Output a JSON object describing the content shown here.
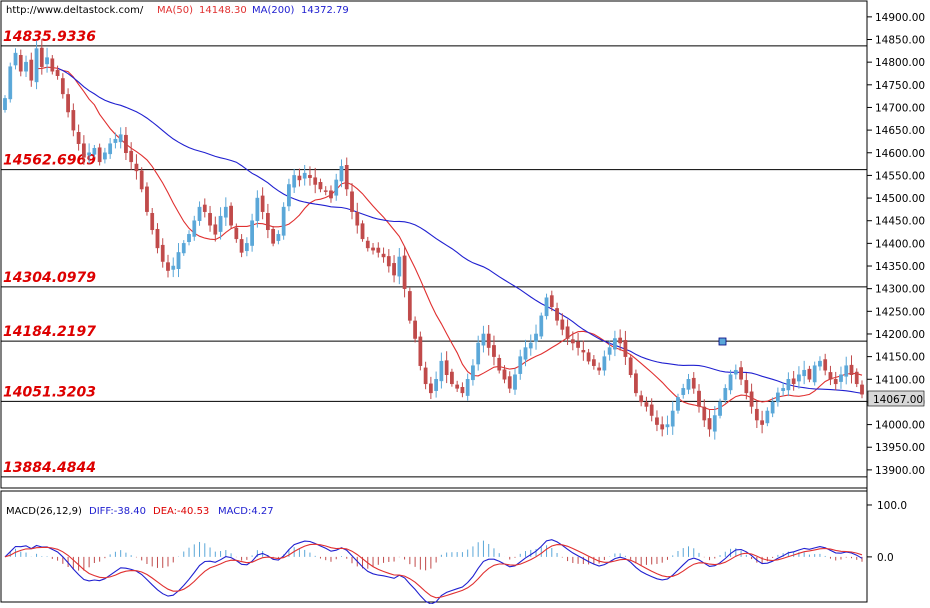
{
  "header": {
    "source": "http://www.deltastock.com/",
    "ma50_label": "MA(50)",
    "ma50_value": "14148.30",
    "ma200_label": "MA(200)",
    "ma200_value": "14372.79"
  },
  "macd_header": {
    "title": "MACD(26,12,9)",
    "diff": "DIFF:-38.40",
    "dea": "DEA:-40.53",
    "macd": "MACD:4.27"
  },
  "current_price": "14067.00",
  "colors": {
    "up": "#5aa7d8",
    "down": "#c04a4a",
    "ma50": "#e03030",
    "ma200": "#2020d0",
    "level_label": "#dd0000",
    "price_box": "#d8d8d8"
  },
  "chart_data": [
    {
      "type": "candlestick",
      "title": "",
      "ylim": [
        13860,
        14935
      ],
      "y_ticks": [
        "13900.00",
        "13950.00",
        "14000.00",
        "14050.00",
        "14100.00",
        "14150.00",
        "14200.00",
        "14250.00",
        "14300.00",
        "14350.00",
        "14400.00",
        "14450.00",
        "14500.00",
        "14550.00",
        "14600.00",
        "14650.00",
        "14700.00",
        "14750.00",
        "14800.00",
        "14850.00",
        "14900.00"
      ],
      "levels": [
        "14835.9336",
        "14562.6969",
        "14304.0979",
        "14184.2197",
        "14051.3203",
        "13884.4844"
      ],
      "closes": [
        14720,
        14790,
        14820,
        14780,
        14800,
        14760,
        14830,
        14790,
        14810,
        14780,
        14770,
        14730,
        14690,
        14650,
        14620,
        14590,
        14600,
        14610,
        14580,
        14600,
        14620,
        14630,
        14640,
        14600,
        14580,
        14560,
        14520,
        14470,
        14430,
        14390,
        14360,
        14340,
        14350,
        14380,
        14400,
        14420,
        14450,
        14480,
        14470,
        14440,
        14420,
        14460,
        14480,
        14440,
        14410,
        14380,
        14400,
        14450,
        14500,
        14470,
        14430,
        14400,
        14420,
        14480,
        14530,
        14550,
        14540,
        14555,
        14545,
        14530,
        14520,
        14515,
        14500,
        14540,
        14570,
        14520,
        14470,
        14440,
        14410,
        14390,
        14385,
        14380,
        14370,
        14350,
        14330,
        14370,
        14300,
        14230,
        14190,
        14130,
        14090,
        14070,
        14100,
        14140,
        14110,
        14090,
        14080,
        14070,
        14100,
        14130,
        14180,
        14200,
        14170,
        14150,
        14120,
        14100,
        14080,
        14110,
        14150,
        14170,
        14180,
        14200,
        14240,
        14280,
        14260,
        14230,
        14210,
        14190,
        14180,
        14170,
        14160,
        14140,
        14130,
        14120,
        14150,
        14170,
        14190,
        14180,
        14150,
        14110,
        14070,
        14050,
        14040,
        14020,
        14000,
        13990,
        14000,
        14030,
        14060,
        14080,
        14100,
        14080,
        14040,
        14010,
        13990,
        14020,
        14050,
        14080,
        14110,
        14120,
        14100,
        14070,
        14040,
        14010,
        14000,
        14030,
        14050,
        14070,
        14080,
        14100,
        14090,
        14110,
        14120,
        14100,
        14130,
        14140,
        14120,
        14100,
        14090,
        14110,
        14130,
        14110,
        14090,
        14067
      ]
    },
    {
      "type": "line",
      "name": "MA(50)"
    },
    {
      "type": "line",
      "name": "MA(200)"
    },
    {
      "type": "bar",
      "title": "MACD(26,12,9)",
      "ylim": [
        -85,
        125
      ],
      "y_ticks": [
        "100.0",
        "0.0"
      ]
    }
  ]
}
